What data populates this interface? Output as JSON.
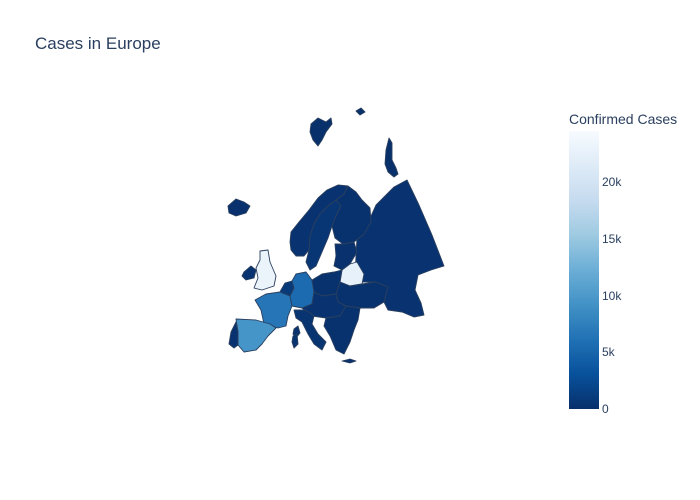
{
  "title": "Cases in Europe",
  "colorbar": {
    "title": "Confirmed Cases",
    "min": 0,
    "max": 24500,
    "ticks": [
      {
        "value": 0,
        "label": "0"
      },
      {
        "value": 5000,
        "label": "5k"
      },
      {
        "value": 10000,
        "label": "10k"
      },
      {
        "value": 15000,
        "label": "15k"
      },
      {
        "value": 20000,
        "label": "20k"
      }
    ],
    "colorscale": [
      "#08306b",
      "#08519c",
      "#2171b5",
      "#4292c6",
      "#6baed6",
      "#9ecae1",
      "#c6dbef",
      "#deebf7",
      "#f7fbff"
    ]
  },
  "chart_data": {
    "type": "choropleth",
    "scope": "europe",
    "title": "Cases in Europe",
    "value_label": "Confirmed Cases",
    "regions": [
      {
        "id": "russia",
        "value": 300
      },
      {
        "id": "norway",
        "value": 300
      },
      {
        "id": "sweden",
        "value": 600
      },
      {
        "id": "finland",
        "value": 200
      },
      {
        "id": "iceland",
        "value": 100
      },
      {
        "id": "svalbard",
        "value": 50
      },
      {
        "id": "novaya-zemlya",
        "value": 50
      },
      {
        "id": "uk",
        "value": 23000
      },
      {
        "id": "ireland",
        "value": 300
      },
      {
        "id": "france",
        "value": 6500
      },
      {
        "id": "spain",
        "value": 9500
      },
      {
        "id": "portugal",
        "value": 300
      },
      {
        "id": "germany",
        "value": 5500
      },
      {
        "id": "benelux",
        "value": 900
      },
      {
        "id": "belarus",
        "value": 22500
      },
      {
        "id": "poland",
        "value": 200
      },
      {
        "id": "ukraine",
        "value": 200
      },
      {
        "id": "baltics",
        "value": 100
      },
      {
        "id": "central-europe",
        "value": 300
      },
      {
        "id": "italy",
        "value": 400
      },
      {
        "id": "balkans",
        "value": 200
      },
      {
        "id": "corsica",
        "value": 300
      },
      {
        "id": "sardinia",
        "value": 400
      },
      {
        "id": "crete",
        "value": 100
      }
    ]
  }
}
